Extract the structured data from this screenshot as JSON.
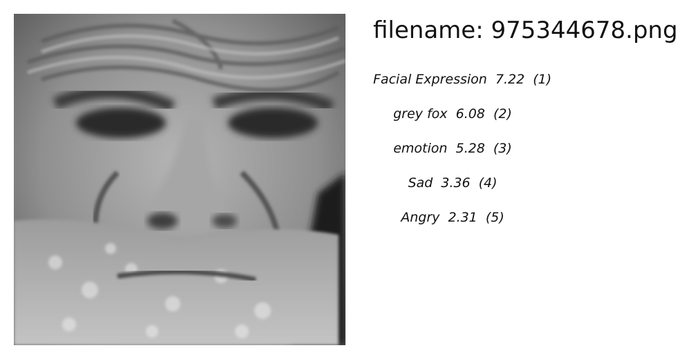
{
  "image": {
    "alt_icon": "grayscale-face-photo"
  },
  "filename_label": "filename: 975344678.png",
  "tags": [
    {
      "label": "Facial Expression",
      "score": "7.22",
      "rank": "(1)"
    },
    {
      "label": "grey fox",
      "score": "6.08",
      "rank": "(2)"
    },
    {
      "label": "emotion",
      "score": "5.28",
      "rank": "(3)"
    },
    {
      "label": "Sad",
      "score": "3.36",
      "rank": "(4)"
    },
    {
      "label": "Angry",
      "score": "2.31",
      "rank": "(5)"
    }
  ]
}
